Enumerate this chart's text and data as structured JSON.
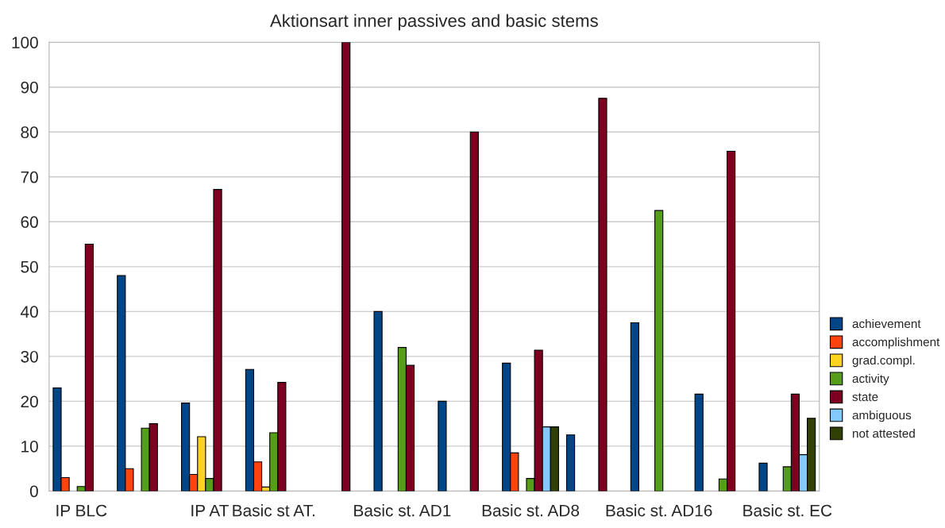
{
  "chart_data": {
    "type": "bar",
    "title": "Aktionsart inner passives and basic stems",
    "categories": [
      "IP BLC",
      null,
      "IP AT",
      "Basic st AT.",
      null,
      "Basic st. AD1",
      null,
      "Basic st. AD8",
      null,
      "Basic st. AD16",
      null,
      "Basic st. EC"
    ],
    "series": [
      {
        "name": "achievement",
        "color": "#004586",
        "values": [
          23,
          48,
          19.6,
          27.1,
          null,
          40,
          20,
          28.5,
          12.5,
          37.5,
          21.6,
          6.2
        ]
      },
      {
        "name": "accomplishment",
        "color": "#ff420e",
        "values": [
          3,
          5,
          3.7,
          6.5,
          null,
          null,
          null,
          8.5,
          null,
          null,
          null,
          null
        ]
      },
      {
        "name": "grad.compl.",
        "color": "#ffd320",
        "values": [
          null,
          null,
          12.1,
          0.9,
          null,
          null,
          null,
          null,
          null,
          null,
          null,
          null
        ]
      },
      {
        "name": "activity",
        "color": "#579d1c",
        "values": [
          1,
          14,
          2.8,
          13,
          null,
          32,
          null,
          2.8,
          null,
          62.5,
          2.7,
          5.4
        ]
      },
      {
        "name": "state",
        "color": "#7e0021",
        "values": [
          55,
          15,
          67.2,
          24.2,
          100,
          28,
          80,
          31.4,
          87.5,
          null,
          75.7,
          21.6
        ]
      },
      {
        "name": "ambiguous",
        "color": "#83caff",
        "values": [
          null,
          null,
          null,
          null,
          null,
          null,
          null,
          14.3,
          null,
          null,
          null,
          8.1
        ]
      },
      {
        "name": "not attested",
        "color": "#314004",
        "values": [
          null,
          null,
          null,
          null,
          null,
          null,
          null,
          14.3,
          null,
          null,
          null,
          16.2
        ]
      }
    ],
    "ylim": [
      0,
      100
    ],
    "yticks": [
      0,
      10,
      20,
      30,
      40,
      50,
      60,
      70,
      80,
      90,
      100
    ],
    "grid": "y",
    "legend": "right"
  }
}
